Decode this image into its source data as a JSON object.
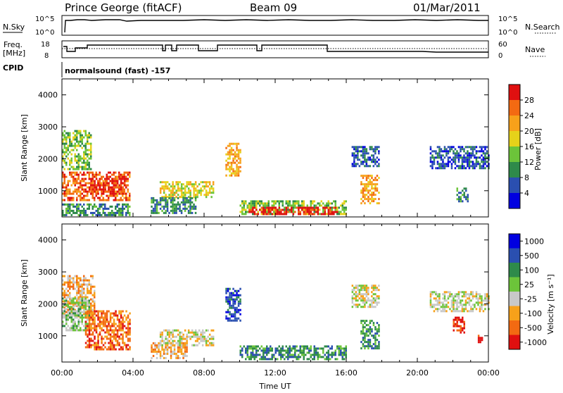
{
  "header": {
    "station": "Prince George (fitACF)",
    "beam": "Beam 09",
    "date": "01/Mar/2011"
  },
  "strips": {
    "nsky_label": "N.Sky",
    "nsky_ticks": [
      "10^5",
      "10^0"
    ],
    "nsearch_label": "N.Search",
    "nsearch_ticks": [
      "10^5",
      "10^0"
    ],
    "freq_label": "Freq.",
    "freq_unit": "[MHz]",
    "freq_ticks": [
      "18",
      "8"
    ],
    "nave_label": "Nave",
    "nave_ticks": [
      "60",
      "0"
    ],
    "cpid_label": "CPID",
    "cpid_value": "normalsound (fast) -157"
  },
  "chart_data": [
    {
      "type": "heatmap",
      "name": "power-panel",
      "ylabel": "Slant Range [km]",
      "xlabel": "",
      "xlim": [
        "00:00",
        "24:00"
      ],
      "ylim": [
        180,
        4500
      ],
      "yticks": [
        "1000",
        "2000",
        "3000",
        "4000"
      ],
      "xticks": [
        "00:00",
        "04:00",
        "08:00",
        "12:00",
        "16:00",
        "20:00",
        "00:00"
      ],
      "colorbar": {
        "label": "Power [dB]",
        "ticks": [
          "28",
          "24",
          "20",
          "16",
          "12",
          "8",
          "4"
        ],
        "colors": [
          "#0000e0",
          "#2a4fb0",
          "#2e8a4a",
          "#6cc43a",
          "#e6d21a",
          "#f7a11a",
          "#f36a12",
          "#e01010"
        ]
      },
      "regions": [
        {
          "t0": 0.0,
          "t1": 1.6,
          "r0": 1700,
          "r1": 2900,
          "level": 3
        },
        {
          "t0": 0.0,
          "t1": 3.8,
          "r0": 700,
          "r1": 1600,
          "level": 6
        },
        {
          "t0": 1.5,
          "t1": 3.5,
          "r0": 900,
          "r1": 1400,
          "level": 7
        },
        {
          "t0": 0.0,
          "t1": 3.8,
          "r0": 250,
          "r1": 600,
          "level": 2
        },
        {
          "t0": 5.5,
          "t1": 8.5,
          "r0": 800,
          "r1": 1300,
          "level": 4
        },
        {
          "t0": 5.0,
          "t1": 7.5,
          "r0": 300,
          "r1": 800,
          "level": 2
        },
        {
          "t0": 9.2,
          "t1": 10.0,
          "r0": 1500,
          "r1": 2500,
          "level": 5
        },
        {
          "t0": 10.0,
          "t1": 16.0,
          "r0": 250,
          "r1": 700,
          "level": 3
        },
        {
          "t0": 10.5,
          "t1": 15.5,
          "r0": 280,
          "r1": 500,
          "level": 7
        },
        {
          "t0": 16.3,
          "t1": 17.8,
          "r0": 1800,
          "r1": 2400,
          "level": 1
        },
        {
          "t0": 16.8,
          "t1": 17.8,
          "r0": 600,
          "r1": 1500,
          "level": 5
        },
        {
          "t0": 20.7,
          "t1": 24.0,
          "r0": 1700,
          "r1": 2400,
          "level": 1
        },
        {
          "t0": 22.2,
          "t1": 22.8,
          "r0": 700,
          "r1": 1100,
          "level": 2
        }
      ]
    },
    {
      "type": "heatmap",
      "name": "velocity-panel",
      "ylabel": "Slant Range [km]",
      "xlabel": "Time UT",
      "xlim": [
        "00:00",
        "24:00"
      ],
      "ylim": [
        180,
        4500
      ],
      "yticks": [
        "1000",
        "2000",
        "3000",
        "4000"
      ],
      "xticks": [
        "00:00",
        "04:00",
        "08:00",
        "12:00",
        "16:00",
        "20:00",
        "00:00"
      ],
      "colorbar": {
        "label": "Velocity [m s⁻¹]",
        "ticks": [
          "1000",
          "500",
          "100",
          "25",
          "-25",
          "-100",
          "-500",
          "-1000"
        ],
        "colors": [
          "#e01010",
          "#f36a12",
          "#f7a11a",
          "#c8c8c8",
          "#6cc43a",
          "#2e8a4a",
          "#2a4fb0",
          "#0000e0"
        ]
      },
      "regions": [
        {
          "t0": 0.0,
          "t1": 1.8,
          "r0": 1600,
          "r1": 2900,
          "level": 2
        },
        {
          "t0": 0.0,
          "t1": 1.5,
          "r0": 1200,
          "r1": 2200,
          "level": 4
        },
        {
          "t0": 1.3,
          "t1": 3.8,
          "r0": 600,
          "r1": 1800,
          "level": 1
        },
        {
          "t0": 5.0,
          "t1": 7.0,
          "r0": 300,
          "r1": 800,
          "level": 2
        },
        {
          "t0": 5.5,
          "t1": 8.5,
          "r0": 700,
          "r1": 1200,
          "level": 3
        },
        {
          "t0": 9.2,
          "t1": 10.0,
          "r0": 1500,
          "r1": 2500,
          "level": 6
        },
        {
          "t0": 10.0,
          "t1": 16.0,
          "r0": 250,
          "r1": 700,
          "level": 5
        },
        {
          "t0": 16.3,
          "t1": 17.8,
          "r0": 1900,
          "r1": 2600,
          "level": 3
        },
        {
          "t0": 16.8,
          "t1": 17.8,
          "r0": 600,
          "r1": 1500,
          "level": 5
        },
        {
          "t0": 20.7,
          "t1": 24.0,
          "r0": 1800,
          "r1": 2400,
          "level": 3
        },
        {
          "t0": 22.0,
          "t1": 22.6,
          "r0": 1100,
          "r1": 1600,
          "level": 0
        },
        {
          "t0": 23.4,
          "t1": 23.6,
          "r0": 800,
          "r1": 1100,
          "level": 0
        }
      ]
    }
  ]
}
